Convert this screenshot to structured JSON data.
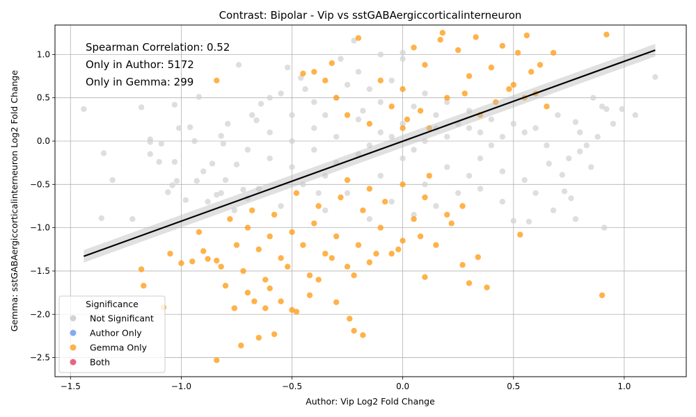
{
  "chart_data": {
    "type": "scatter",
    "title": "Contrast: Bipolar - Vip vs sstGABAergiccorticalinterneuron",
    "xlabel": "Author: Vip Log2 Fold Change",
    "ylabel": "Gemma: sstGABAergiccorticalinterneuron Log2 Fold Change",
    "xlim": [
      -1.57,
      1.28
    ],
    "ylim": [
      -2.72,
      1.34
    ],
    "x_ticks": [
      -1.5,
      -1.0,
      -0.5,
      0.0,
      0.5,
      1.0
    ],
    "x_tick_labels": [
      "−1.5",
      "−1.0",
      "−0.5",
      "0.0",
      "0.5",
      "1.0"
    ],
    "y_ticks": [
      1.0,
      0.5,
      0.0,
      -0.5,
      -1.0,
      -1.5,
      -2.0,
      -2.5
    ],
    "y_tick_labels": [
      "1.0",
      "0.5",
      "0.0",
      "−0.5",
      "−1.0",
      "−1.5",
      "−2.0",
      "−2.5"
    ],
    "grid": true,
    "annotations": [
      "Spearman Correlation: 0.52",
      "Only in Author: 5172",
      "Only in Gemma: 299"
    ],
    "legend": {
      "title": "Significance",
      "placement": "lower-left",
      "entries": [
        {
          "label": "Not Significant",
          "color": "#d3d3d3"
        },
        {
          "label": "Author Only",
          "color": "#6495ed"
        },
        {
          "label": "Gemma Only",
          "color": "#ff9f1c"
        },
        {
          "label": "Both",
          "color": "#e0405f"
        }
      ]
    },
    "regression_line": {
      "x": [
        -1.44,
        1.14
      ],
      "y": [
        -1.33,
        1.05
      ],
      "color": "#000000"
    },
    "series": [
      {
        "name": "Not Significant",
        "color": "#d3d3d3",
        "points": [
          [
            -1.44,
            0.37
          ],
          [
            -1.35,
            -0.14
          ],
          [
            -1.31,
            -0.45
          ],
          [
            -1.36,
            -0.89
          ],
          [
            -1.22,
            -0.9
          ],
          [
            -1.18,
            0.39
          ],
          [
            -1.14,
            0.02
          ],
          [
            -1.14,
            -0.01
          ],
          [
            -1.14,
            -0.15
          ],
          [
            -1.09,
            -0.03
          ],
          [
            -1.1,
            -0.24
          ],
          [
            -1.03,
            0.42
          ],
          [
            -1.01,
            0.15
          ],
          [
            -1.03,
            -0.24
          ],
          [
            -1.04,
            -0.51
          ],
          [
            -1.02,
            -0.46
          ],
          [
            -0.96,
            0.16
          ],
          [
            -0.94,
            0.0
          ],
          [
            -0.93,
            -0.46
          ],
          [
            -0.92,
            0.51
          ],
          [
            -0.9,
            -0.35
          ],
          [
            -0.86,
            -0.26
          ],
          [
            -0.82,
            0.06
          ],
          [
            -0.81,
            -0.03
          ],
          [
            -0.79,
            0.2
          ],
          [
            -0.75,
            -0.27
          ],
          [
            -0.74,
            0.88
          ],
          [
            -0.72,
            -0.56
          ],
          [
            -0.7,
            -0.66
          ],
          [
            -0.68,
            0.3
          ],
          [
            -0.66,
            0.24
          ],
          [
            -0.64,
            0.43
          ],
          [
            -0.6,
            0.5
          ],
          [
            -0.55,
            0.55
          ],
          [
            -0.52,
            0.85
          ],
          [
            -0.5,
            0.3
          ],
          [
            -0.46,
            0.73
          ],
          [
            -0.44,
            0.6
          ],
          [
            -0.4,
            0.45
          ],
          [
            -0.38,
            -0.6
          ],
          [
            -0.35,
            0.3
          ],
          [
            -0.3,
            0.5
          ],
          [
            -0.25,
            0.65
          ],
          [
            -0.2,
            0.8
          ],
          [
            -0.18,
            0.35
          ],
          [
            -0.15,
            0.6
          ],
          [
            -0.1,
            0.45
          ],
          [
            -0.05,
            0.7
          ],
          [
            0.0,
            0.95
          ],
          [
            0.05,
            0.4
          ],
          [
            0.1,
            0.55
          ],
          [
            0.15,
            0.3
          ],
          [
            0.2,
            0.45
          ],
          [
            0.25,
            0.2
          ],
          [
            0.3,
            0.35
          ],
          [
            0.35,
            0.1
          ],
          [
            0.4,
            0.25
          ],
          [
            0.45,
            0.05
          ],
          [
            0.5,
            0.2
          ],
          [
            0.55,
            0.1
          ],
          [
            0.6,
            0.15
          ],
          [
            0.65,
            -0.05
          ],
          [
            0.7,
            0.3
          ],
          [
            0.75,
            -0.2
          ],
          [
            0.8,
            0.1
          ],
          [
            0.86,
            0.5
          ],
          [
            0.9,
            0.4
          ],
          [
            0.92,
            0.37
          ],
          [
            0.95,
            0.2
          ],
          [
            1.14,
            0.74
          ],
          [
            0.91,
            -1.0
          ],
          [
            0.5,
            -0.92
          ],
          [
            0.57,
            -0.93
          ],
          [
            0.66,
            -0.26
          ],
          [
            0.72,
            -0.39
          ],
          [
            0.8,
            -0.12
          ],
          [
            0.85,
            -0.3
          ],
          [
            0.6,
            -0.6
          ],
          [
            0.45,
            -0.7
          ],
          [
            0.3,
            -0.4
          ],
          [
            0.2,
            -0.3
          ],
          [
            0.1,
            -0.5
          ],
          [
            0.0,
            -0.2
          ],
          [
            -0.1,
            -0.4
          ],
          [
            -0.2,
            -0.15
          ],
          [
            -0.3,
            -0.25
          ],
          [
            -0.4,
            -0.1
          ],
          [
            -0.5,
            -0.3
          ],
          [
            -0.6,
            -0.2
          ],
          [
            -0.7,
            -0.1
          ],
          [
            -0.8,
            -0.45
          ],
          [
            -0.65,
            -0.55
          ],
          [
            -0.55,
            -0.75
          ],
          [
            -0.45,
            -0.5
          ],
          [
            -0.35,
            -0.8
          ],
          [
            -0.25,
            -0.6
          ],
          [
            -0.15,
            -0.9
          ],
          [
            -0.05,
            -0.7
          ],
          [
            0.05,
            -0.85
          ],
          [
            0.15,
            -0.75
          ],
          [
            0.25,
            -0.6
          ],
          [
            0.35,
            -0.55
          ],
          [
            0.45,
            -0.35
          ],
          [
            0.55,
            -0.45
          ],
          [
            -0.22,
            1.16
          ],
          [
            -0.28,
            0.95
          ],
          [
            -0.1,
            1.0
          ],
          [
            0.0,
            1.02
          ],
          [
            -0.6,
            0.1
          ],
          [
            -0.5,
            0.0
          ],
          [
            -0.4,
            0.15
          ],
          [
            -0.3,
            0.05
          ],
          [
            -0.2,
            0.25
          ],
          [
            -0.1,
            0.1
          ],
          [
            0.0,
            0.2
          ],
          [
            0.1,
            0.0
          ],
          [
            0.2,
            0.05
          ],
          [
            0.3,
            0.15
          ],
          [
            0.4,
            -0.05
          ],
          [
            -0.05,
            0.05
          ],
          [
            0.05,
            -0.1
          ],
          [
            -0.15,
            -0.05
          ],
          [
            0.15,
            0.15
          ],
          [
            -0.35,
            -0.4
          ],
          [
            0.35,
            -0.2
          ],
          [
            -0.84,
            -0.62
          ],
          [
            -0.88,
            -0.7
          ],
          [
            -0.82,
            -0.6
          ],
          [
            -0.76,
            -0.8
          ],
          [
            0.73,
            -0.58
          ],
          [
            0.76,
            -0.66
          ],
          [
            0.68,
            -0.8
          ],
          [
            0.78,
            -0.9
          ],
          [
            1.05,
            0.3
          ],
          [
            0.99,
            0.37
          ],
          [
            0.88,
            0.05
          ],
          [
            0.83,
            -0.05
          ],
          [
            0.78,
            0.22
          ],
          [
            -0.98,
            -0.68
          ],
          [
            -1.06,
            -0.59
          ]
        ]
      },
      {
        "name": "Gemma Only",
        "color": "#ff9f1c",
        "points": [
          [
            -0.84,
            0.7
          ],
          [
            -0.4,
            0.8
          ],
          [
            -0.32,
            0.9
          ],
          [
            -0.2,
            1.19
          ],
          [
            0.18,
            1.25
          ],
          [
            0.17,
            1.17
          ],
          [
            0.33,
            1.2
          ],
          [
            0.56,
            1.22
          ],
          [
            0.45,
            1.1
          ],
          [
            0.52,
            1.02
          ],
          [
            0.68,
            1.02
          ],
          [
            0.92,
            1.23
          ],
          [
            0.65,
            0.4
          ],
          [
            0.62,
            0.88
          ],
          [
            0.58,
            0.8
          ],
          [
            0.5,
            0.65
          ],
          [
            0.4,
            0.85
          ],
          [
            0.3,
            0.75
          ],
          [
            0.25,
            1.05
          ],
          [
            0.1,
            0.88
          ],
          [
            0.05,
            1.08
          ],
          [
            0.0,
            0.6
          ],
          [
            -0.05,
            0.4
          ],
          [
            -0.1,
            0.7
          ],
          [
            -0.15,
            0.2
          ],
          [
            0.02,
            0.25
          ],
          [
            0.08,
            0.35
          ],
          [
            0.12,
            0.15
          ],
          [
            0.2,
            0.5
          ],
          [
            0.28,
            0.55
          ],
          [
            0.35,
            0.3
          ],
          [
            0.42,
            0.45
          ],
          [
            0.48,
            0.6
          ],
          [
            0.55,
            0.5
          ],
          [
            0.6,
            0.55
          ],
          [
            -0.25,
            0.3
          ],
          [
            -0.3,
            0.5
          ],
          [
            -0.35,
            0.7
          ],
          [
            -0.45,
            0.78
          ],
          [
            0.0,
            0.15
          ],
          [
            -1.18,
            -1.48
          ],
          [
            -1.17,
            -1.67
          ],
          [
            -1.08,
            -1.92
          ],
          [
            -1.05,
            -1.3
          ],
          [
            -1.0,
            -1.41
          ],
          [
            -0.95,
            -1.39
          ],
          [
            -0.92,
            -1.05
          ],
          [
            -0.9,
            -1.27
          ],
          [
            -0.88,
            -1.36
          ],
          [
            -0.84,
            -1.38
          ],
          [
            -0.82,
            -1.45
          ],
          [
            -0.8,
            -1.67
          ],
          [
            -0.76,
            -1.93
          ],
          [
            -0.73,
            -2.36
          ],
          [
            -0.7,
            -1.75
          ],
          [
            -0.67,
            -1.85
          ],
          [
            -0.65,
            -2.27
          ],
          [
            -0.62,
            -1.93
          ],
          [
            -0.58,
            -2.23
          ],
          [
            -0.55,
            -1.85
          ],
          [
            -0.5,
            -1.95
          ],
          [
            -0.48,
            -1.97
          ],
          [
            -0.42,
            -1.78
          ],
          [
            -0.38,
            -1.6
          ],
          [
            -0.3,
            -1.86
          ],
          [
            -0.24,
            -2.05
          ],
          [
            -0.22,
            -2.19
          ],
          [
            -0.18,
            -2.24
          ],
          [
            -0.84,
            -2.53
          ],
          [
            -0.6,
            -1.7
          ],
          [
            0.27,
            -1.43
          ],
          [
            0.34,
            -1.34
          ],
          [
            0.3,
            -1.64
          ],
          [
            0.38,
            -1.69
          ],
          [
            0.1,
            -1.57
          ],
          [
            0.53,
            -1.08
          ],
          [
            0.9,
            -1.78
          ],
          [
            0.27,
            -0.75
          ],
          [
            0.2,
            -0.85
          ],
          [
            0.1,
            -0.65
          ],
          [
            0.05,
            -0.9
          ],
          [
            0.0,
            -1.15
          ],
          [
            -0.05,
            -1.3
          ],
          [
            -0.1,
            -1.0
          ],
          [
            -0.15,
            -1.4
          ],
          [
            -0.2,
            -1.2
          ],
          [
            -0.25,
            -1.45
          ],
          [
            -0.3,
            -1.1
          ],
          [
            -0.35,
            -1.3
          ],
          [
            -0.4,
            -0.95
          ],
          [
            -0.45,
            -1.2
          ],
          [
            -0.5,
            -1.05
          ],
          [
            -0.55,
            -1.35
          ],
          [
            -0.6,
            -1.1
          ],
          [
            -0.65,
            -1.25
          ],
          [
            -0.7,
            -1.0
          ],
          [
            -0.75,
            -1.2
          ],
          [
            -0.78,
            -0.9
          ],
          [
            -0.72,
            -1.5
          ],
          [
            -0.62,
            -1.6
          ],
          [
            -0.52,
            -1.45
          ],
          [
            -0.42,
            -1.55
          ],
          [
            -0.32,
            -1.35
          ],
          [
            -0.22,
            -1.55
          ],
          [
            -0.12,
            -1.3
          ],
          [
            -0.02,
            -1.25
          ],
          [
            0.08,
            -1.1
          ],
          [
            0.15,
            -1.2
          ],
          [
            0.22,
            -0.95
          ],
          [
            -0.08,
            -0.7
          ],
          [
            -0.18,
            -0.8
          ],
          [
            -0.28,
            -0.65
          ],
          [
            -0.38,
            -0.75
          ],
          [
            -0.48,
            -0.6
          ],
          [
            -0.58,
            -0.85
          ],
          [
            -0.68,
            -0.8
          ],
          [
            -0.15,
            -0.55
          ],
          [
            -0.25,
            -0.45
          ],
          [
            0.0,
            -0.5
          ],
          [
            0.12,
            -0.4
          ]
        ]
      },
      {
        "name": "Author Only",
        "color": "#6495ed",
        "points": []
      },
      {
        "name": "Both",
        "color": "#e0405f",
        "points": []
      }
    ]
  }
}
